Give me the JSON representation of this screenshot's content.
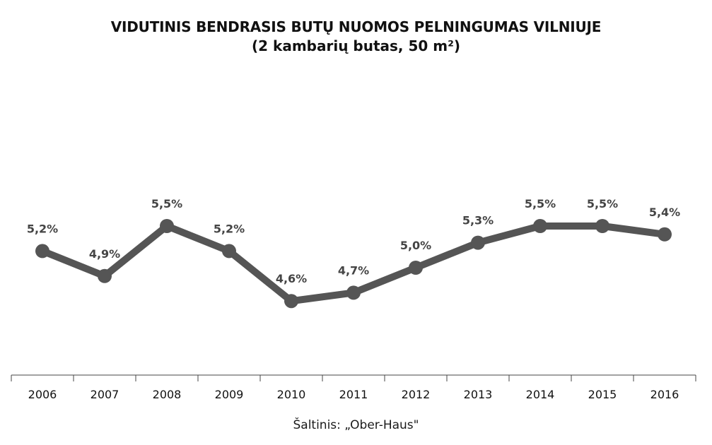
{
  "chart_data": {
    "type": "line",
    "title": "VIDUTINIS BENDRASIS BUTŲ NUOMOS PELNINGUMAS VILNIUJE",
    "subtitle": "(2 kambarių butas, 50 m²)",
    "xlabel": "",
    "ylabel": "",
    "categories": [
      "2006",
      "2007",
      "2008",
      "2009",
      "2010",
      "2011",
      "2012",
      "2013",
      "2014",
      "2015",
      "2016"
    ],
    "series": [
      {
        "values": [
          5.2,
          4.9,
          5.5,
          5.2,
          4.6,
          4.7,
          5.0,
          5.3,
          5.5,
          5.5,
          5.4
        ],
        "labels": [
          "5,2%",
          "4,9%",
          "5,5%",
          "5,2%",
          "4,6%",
          "4,7%",
          "5,0%",
          "5,3%",
          "5,5%",
          "5,5%",
          "5,4%"
        ]
      }
    ],
    "ylim": [
      4.0,
      6.0
    ],
    "grid": false,
    "legend": "none",
    "line_color": "#555555",
    "source": "Šaltinis: „Ober-Haus\""
  }
}
